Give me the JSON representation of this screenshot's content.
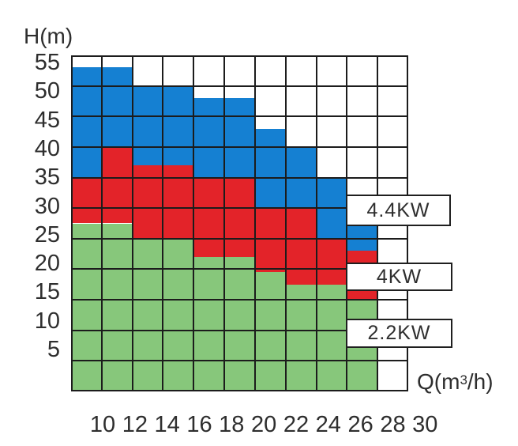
{
  "chart_data": {
    "type": "area",
    "title": "",
    "x_axis": {
      "title_pre": "Q(m",
      "title_sup": "3",
      "title_post": "/h)",
      "range": [
        8,
        30
      ],
      "grid_step": 2,
      "tick_labels": [
        "10",
        "12",
        "14",
        "16",
        "18",
        "20",
        "22",
        "24",
        "26",
        "28",
        "30"
      ]
    },
    "y_axis": {
      "title": "H(m)",
      "range": [
        0,
        55
      ],
      "grid_step": 5,
      "tick_labels": [
        "55",
        "50",
        "45",
        "40",
        "35",
        "30",
        "25",
        "20",
        "15",
        "10",
        "5"
      ]
    },
    "grid": {
      "on": true,
      "line_color": "#1c1c1c"
    },
    "series": [
      {
        "key": "2.2KW",
        "label": "2.2KW",
        "color": "#87C77B"
      },
      {
        "key": "4KW",
        "label": "4KW",
        "color": "#E32329"
      },
      {
        "key": "4.4KW",
        "label": "4.4KW",
        "color": "#1580D2"
      }
    ],
    "columns": [
      {
        "q": [
          8,
          10
        ],
        "tops": {
          "2.2KW": 27.5,
          "4KW": 35,
          "4.4KW": 53
        }
      },
      {
        "q": [
          10,
          12
        ],
        "tops": {
          "2.2KW": 27.5,
          "4KW": 40,
          "4.4KW": 53
        }
      },
      {
        "q": [
          12,
          14
        ],
        "tops": {
          "2.2KW": 25,
          "4KW": 37,
          "4.4KW": 50
        }
      },
      {
        "q": [
          14,
          16
        ],
        "tops": {
          "2.2KW": 25,
          "4KW": 37,
          "4.4KW": 50
        }
      },
      {
        "q": [
          16,
          18
        ],
        "tops": {
          "2.2KW": 22,
          "4KW": 35,
          "4.4KW": 48
        }
      },
      {
        "q": [
          18,
          20
        ],
        "tops": {
          "2.2KW": 22,
          "4KW": 35,
          "4.4KW": 48
        }
      },
      {
        "q": [
          20,
          22
        ],
        "tops": {
          "2.2KW": 19.5,
          "4KW": 30,
          "4.4KW": 43
        }
      },
      {
        "q": [
          22,
          24
        ],
        "tops": {
          "2.2KW": 17.5,
          "4KW": 30,
          "4.4KW": 40
        }
      },
      {
        "q": [
          24,
          26
        ],
        "tops": {
          "2.2KW": 17.5,
          "4KW": 25,
          "4.4KW": 35
        }
      },
      {
        "q": [
          26,
          28
        ],
        "tops": {
          "2.2KW": 15,
          "4KW": 23,
          "4.4KW": 27
        }
      }
    ],
    "power_labels": [
      "4.4KW",
      "4KW",
      "2.2KW"
    ],
    "legend_position": "right-inside"
  }
}
